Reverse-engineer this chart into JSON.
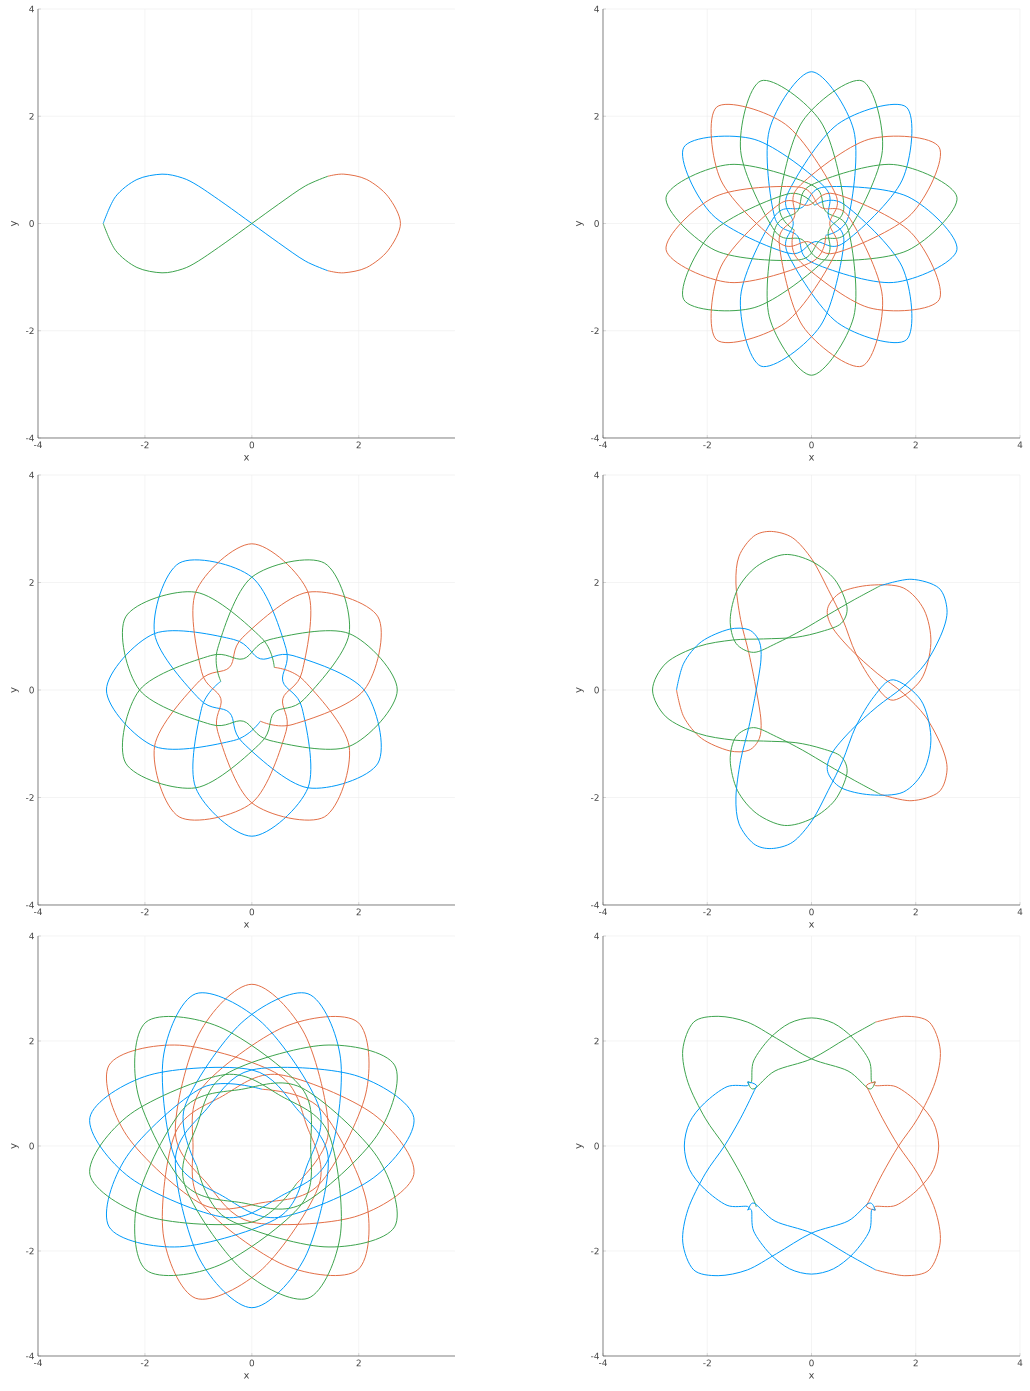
{
  "chart_data": [
    {
      "type": "line",
      "xlabel": "x",
      "ylabel": "y",
      "xlim": [
        -4,
        3.8
      ],
      "ylim": [
        -4,
        4
      ],
      "xticks": [
        -4,
        -2,
        0,
        2
      ],
      "yticks": [
        -4,
        -2,
        0,
        2,
        4
      ],
      "grid": true,
      "series": [
        {
          "color": "#009afa",
          "x": [
            1.42,
            1.0,
            0.5,
            0,
            -0.5,
            -1.0,
            -1.3,
            -1.68,
            -2.15,
            -2.55,
            -2.78
          ],
          "values": [
            -0.88,
            -0.7,
            -0.36,
            0,
            0.36,
            0.7,
            0.85,
            0.92,
            0.82,
            0.5,
            0
          ]
        },
        {
          "color": "#e36f47",
          "x": [
            1.42,
            1.72,
            2.15,
            2.55,
            2.78,
            2.55,
            2.15,
            1.72,
            1.42
          ],
          "values": [
            0.88,
            0.92,
            0.82,
            0.5,
            0,
            -0.5,
            -0.82,
            -0.92,
            -0.88
          ]
        },
        {
          "color": "#3ea44e",
          "x": [
            -2.78,
            -2.55,
            -2.15,
            -1.68,
            -1.3,
            -1.0,
            -0.5,
            0,
            0.5,
            1.0,
            1.42
          ],
          "values": [
            0,
            -0.5,
            -0.82,
            -0.92,
            -0.85,
            -0.7,
            -0.36,
            0,
            0.36,
            0.7,
            0.88
          ]
        }
      ]
    },
    {
      "type": "line",
      "xlabel": "x",
      "ylabel": "y",
      "xlim": [
        -4,
        4
      ],
      "ylim": [
        -4,
        4
      ],
      "xticks": [
        -4,
        -2,
        0,
        2,
        4
      ],
      "yticks": [
        -4,
        -2,
        0,
        2,
        4
      ],
      "grid": true,
      "series": [
        {
          "color": "#009afa",
          "x": [
            0.27,
            0.71,
            0.81,
            0,
            -0.81,
            -0.71,
            -0.27,
            0,
            1.57,
            2.79,
            1.85,
            0.25,
            -0.18,
            -0.71,
            -1.36,
            -0.97,
            0.17,
            0.62,
            0.33,
            0.25,
            -1.1,
            -2.45,
            -1.91,
            -0.46,
            0.06,
            0.62,
            1.74,
            1.82,
            0.5,
            -0.46,
            -0.35,
            -0.46,
            0.5,
            1.82,
            1.74,
            0.62,
            0.06
          ],
          "values": [
            -0.22,
            0.13,
            1.74,
            2.83,
            1.74,
            0.13,
            -0.23,
            -0.72,
            -1.1,
            -0.49,
            0.5,
            0.68,
            0.3,
            0.13,
            -1.36,
            -2.66,
            -1.91,
            -0.36,
            0.12,
            0.68,
            1.57,
            1.42,
            0.17,
            -0.55,
            -0.34,
            -0.36,
            0.81,
            2.17,
            1.85,
            0.55,
            0,
            -0.55,
            -1.85,
            -2.17,
            -0.81,
            0.36,
            0.34
          ]
        },
        {
          "color": "#3ea44e",
          "x": [
            0.06,
            -0.46,
            -1.91,
            -2.45,
            -1.1,
            0.25,
            0.33,
            0.62,
            0.17,
            -0.97,
            -1.36,
            -0.71,
            -0.18,
            0.25,
            1.85,
            2.79,
            1.57,
            0,
            -0.27,
            -0.71,
            -0.81,
            0,
            0.81,
            0.71,
            0.27,
            0,
            -1.57,
            -2.79,
            -1.85,
            -0.25,
            0.18,
            0.71,
            1.36,
            0.97,
            -0.17,
            -0.62,
            -0.33
          ],
          "values": [
            0.34,
            0.55,
            -0.17,
            -1.42,
            -1.57,
            -0.68,
            -0.12,
            0.36,
            1.91,
            2.66,
            1.36,
            -0.13,
            -0.3,
            -0.68,
            -0.5,
            0.49,
            1.1,
            0.72,
            0.23,
            -0.13,
            -1.74,
            -2.83,
            -1.74,
            -0.13,
            0.23,
            0.72,
            1.1,
            0.49,
            -0.5,
            -0.68,
            -0.3,
            -0.13,
            1.36,
            2.66,
            1.91,
            0.36,
            -0.12
          ]
        },
        {
          "color": "#e36f47",
          "x": [
            -0.33,
            -0.25,
            1.1,
            2.45,
            1.91,
            0.46,
            -0.06,
            -0.62,
            -1.74,
            -1.82,
            -0.5,
            0.46,
            0.35,
            0.46,
            -0.5,
            -1.82,
            -1.74,
            -0.62,
            -0.06,
            0.46,
            1.91,
            2.45,
            1.1,
            -0.25,
            -0.33,
            -0.62,
            -0.17,
            0.97,
            1.36,
            0.71,
            0.18,
            -0.25,
            -1.85,
            -2.79,
            -1.57,
            0,
            0.27
          ],
          "values": [
            -0.12,
            -0.68,
            -1.57,
            -1.42,
            -0.17,
            0.55,
            0.34,
            0.36,
            -0.81,
            -2.17,
            -1.85,
            -0.55,
            0,
            0.55,
            1.85,
            2.17,
            0.81,
            -0.36,
            -0.34,
            -0.55,
            0.17,
            1.42,
            1.57,
            0.68,
            0.12,
            -0.36,
            -1.91,
            -2.66,
            -1.36,
            0.13,
            0.3,
            0.68,
            0.5,
            -0.49,
            -1.1,
            -0.72,
            -0.23
          ]
        }
      ]
    },
    {
      "type": "line",
      "xlabel": "x",
      "ylabel": "y",
      "xlim": [
        -4,
        3.8
      ],
      "ylim": [
        -4,
        4
      ],
      "xticks": [
        -4,
        -2,
        0,
        2
      ],
      "yticks": [
        -4,
        -2,
        0,
        2,
        4
      ],
      "grid": true,
      "series": [
        {
          "color": "#009afa",
          "x": [
            -0.58,
            -0.94,
            -1.05,
            0,
            1.05,
            0.94,
            0.58,
            0.64,
            0,
            -1.36,
            -1.82,
            -0.98,
            -0.42,
            -0.17,
            1.05,
            2.36,
            2.1,
            0.77,
            0.16,
            -0.34,
            -1.82,
            -2.72,
            -1.82,
            -0.34,
            0.16
          ],
          "values": [
            0.16,
            -0.34,
            -1.82,
            -2.72,
            -1.82,
            -0.34,
            0.16,
            0.77,
            2.1,
            2.36,
            1.05,
            -0.17,
            -0.42,
            -0.98,
            -1.82,
            -1.36,
            0,
            0.64,
            0.58,
            0.94,
            1.05,
            0,
            -1.05,
            -0.94,
            -0.58
          ]
        },
        {
          "color": "#e36f47",
          "x": [
            0.16,
            0.77,
            2.1,
            2.36,
            1.05,
            -0.17,
            -0.42,
            -0.98,
            -1.82,
            -1.36,
            0,
            0.64,
            0.58,
            0.94,
            1.05,
            0,
            -1.05,
            -0.94,
            -0.58,
            -0.64,
            0,
            1.36,
            1.82,
            0.98,
            0.42
          ],
          "values": [
            -0.58,
            -0.64,
            0,
            1.36,
            1.82,
            0.98,
            0.42,
            0.17,
            -1.05,
            -2.36,
            -2.1,
            -0.77,
            -0.16,
            0.34,
            1.82,
            2.72,
            1.82,
            0.34,
            -0.16,
            -0.77,
            -2.1,
            -2.36,
            -1.05,
            0.17,
            0.42
          ]
        },
        {
          "color": "#3ea44e",
          "x": [
            0.42,
            0.17,
            -1.05,
            -2.36,
            -2.1,
            -0.77,
            -0.16,
            0.34,
            1.82,
            2.72,
            1.82,
            0.34,
            -0.16,
            -0.77,
            -2.1,
            -2.36,
            -1.05,
            0.17,
            0.42,
            0.98,
            1.82,
            1.36,
            0,
            -0.64,
            -0.58
          ],
          "values": [
            0.42,
            0.98,
            1.82,
            1.36,
            0,
            -0.64,
            -0.58,
            -0.94,
            -1.05,
            0,
            1.05,
            0.94,
            0.58,
            0.64,
            0,
            -1.36,
            -1.82,
            -0.98,
            -0.42,
            -0.17,
            1.05,
            2.36,
            2.1,
            0.77,
            0.16
          ]
        }
      ]
    },
    {
      "type": "line",
      "xlabel": "x",
      "ylabel": "y",
      "xlim": [
        -4,
        4
      ],
      "ylim": [
        -4,
        4
      ],
      "xticks": [
        -4,
        -2,
        0,
        2,
        4
      ],
      "yticks": [
        -4,
        -2,
        0,
        2,
        4
      ],
      "grid": true,
      "series": [
        {
          "color": "#e36f47",
          "x": [
            -2.59,
            -2.45,
            -2.11,
            -1.58,
            -1.2,
            -1.0,
            -0.97,
            -1.06,
            -1.2,
            -1.36,
            -1.45,
            -1.39,
            -1.11,
            -0.77,
            -0.36,
            0.01,
            0.32,
            0.6,
            0.85,
            1.2,
            1.57,
            2.1,
            2.29,
            2.16,
            1.76,
            1.13,
            0.57,
            0.31,
            0.39,
            0.76,
            1.26,
            1.76,
            2.19,
            2.5,
            2.6,
            2.44,
            1.91,
            1.32
          ],
          "values": [
            0,
            -0.5,
            -0.9,
            -1.13,
            -1.12,
            -0.9,
            -0.56,
            0,
            0.68,
            1.31,
            1.99,
            2.49,
            2.86,
            2.95,
            2.83,
            2.43,
            1.87,
            1.31,
            0.68,
            0.12,
            -0.19,
            0.19,
            0.87,
            1.49,
            1.9,
            1.95,
            1.82,
            1.52,
            1.18,
            0.75,
            0.31,
            -0.06,
            -0.5,
            -1.06,
            -1.49,
            -1.9,
            -2.06,
            -1.94
          ]
        },
        {
          "color": "#3ea44e",
          "x": [
            1.32,
            0.82,
            0.32,
            -0.17,
            -0.67,
            -1.11,
            -1.45,
            -1.56,
            -1.42,
            -1.05,
            -0.52,
            0.01,
            0.45,
            0.68,
            0.57,
            0.2,
            -0.3,
            -0.92,
            -1.51,
            -2.17,
            -2.79,
            -3.05,
            -2.79,
            -2.17,
            -1.51,
            -0.92,
            -0.3,
            0.2,
            0.57,
            0.68,
            0.45,
            0.01,
            -0.52,
            -1.05,
            -1.42,
            -1.56,
            -1.45,
            -1.11,
            -0.67,
            -0.17,
            0.32,
            0.82,
            1.32
          ],
          "values": [
            -1.94,
            -1.68,
            -1.4,
            -1.12,
            -0.87,
            -0.7,
            -0.87,
            -1.31,
            -1.87,
            -2.3,
            -2.52,
            -2.39,
            -2.05,
            -1.55,
            -1.24,
            -1.09,
            -0.98,
            -0.95,
            -0.93,
            -0.81,
            -0.5,
            0,
            0.5,
            0.81,
            0.93,
            0.95,
            0.98,
            1.09,
            1.24,
            1.55,
            2.05,
            2.39,
            2.52,
            2.3,
            1.87,
            1.31,
            0.87,
            0.7,
            0.87,
            1.12,
            1.4,
            1.68,
            1.94
          ]
        },
        {
          "color": "#009afa",
          "x": [
            1.32,
            1.91,
            2.44,
            2.6,
            2.5,
            2.19,
            1.76,
            1.26,
            0.76,
            0.39,
            0.31,
            0.57,
            1.13,
            1.76,
            2.16,
            2.29,
            2.1,
            1.57,
            1.2,
            0.85,
            0.6,
            0.32,
            0.01,
            -0.36,
            -0.77,
            -1.11,
            -1.39,
            -1.45,
            -1.36,
            -1.2,
            -1.06,
            -0.97,
            -1.0,
            -1.2,
            -1.58,
            -2.11,
            -2.45,
            -2.59
          ],
          "values": [
            1.94,
            2.06,
            1.9,
            1.49,
            1.06,
            0.5,
            0.06,
            -0.31,
            -0.75,
            -1.18,
            -1.52,
            -1.82,
            -1.95,
            -1.9,
            -1.49,
            -0.87,
            -0.19,
            0.19,
            -0.12,
            -0.68,
            -1.31,
            -1.87,
            -2.43,
            -2.83,
            -2.95,
            -2.86,
            -2.49,
            -1.99,
            -1.31,
            -0.68,
            0,
            0.56,
            0.9,
            1.12,
            1.13,
            0.9,
            0.5,
            0
          ]
        }
      ]
    },
    {
      "type": "line",
      "xlabel": "x",
      "ylabel": "y",
      "xlim": [
        -4,
        3.8
      ],
      "ylim": [
        -4,
        4
      ],
      "xticks": [
        -4,
        -2,
        0,
        2
      ],
      "yticks": [
        -4,
        -2,
        0,
        2,
        4
      ],
      "grid": true,
      "series": [
        {
          "color": "#e36f47",
          "x": [
            0.84,
            1.43,
            0.99,
            0,
            -0.99,
            -1.43,
            -0.84,
            0,
            1.92,
            3.03,
            2.27,
            0.5,
            -0.55,
            -1.43,
            -1.66,
            -1.05,
            0.2,
            1.26,
            1.03,
            0.5,
            -1.35,
            -2.67,
            -2.34,
            -0.93,
            0.19,
            1.26,
            2.13,
            1.98,
            0.61,
            -0.93,
            -1.1,
            -0.93,
            0.61,
            1.98,
            2.13,
            1.26,
            0.19
          ],
          "values": [
            -0.71,
            0.25,
            2.13,
            3.08,
            2.13,
            0.25,
            -0.71,
            -1.45,
            -1.35,
            -0.54,
            0.61,
            1.36,
            0.95,
            0.25,
            -1.66,
            -2.9,
            -2.34,
            -0.73,
            0.38,
            1.36,
            1.92,
            1.54,
            0.2,
            -1.11,
            -1.08,
            -0.73,
            0.99,
            2.36,
            2.27,
            1.11,
            0,
            -1.11,
            -2.27,
            -2.36,
            -0.99,
            0.73,
            1.08
          ]
        },
        {
          "color": "#009afa",
          "x": [
            0.19,
            -0.93,
            -2.34,
            -2.67,
            -1.35,
            0.5,
            1.03,
            1.26,
            0.2,
            -1.05,
            -1.66,
            -1.43,
            -0.55,
            0.5,
            2.27,
            3.03,
            1.92,
            0,
            -0.84,
            -1.43,
            -0.99,
            0,
            0.99,
            1.43,
            0.84,
            0,
            -1.92,
            -3.03,
            -2.27,
            -0.5,
            0.55,
            1.43,
            1.66,
            1.05,
            -0.2,
            -1.26,
            -1.03
          ],
          "values": [
            1.08,
            1.11,
            -0.2,
            -1.54,
            -1.92,
            -1.36,
            -0.38,
            0.73,
            2.34,
            2.9,
            1.66,
            -0.25,
            -0.95,
            -1.36,
            -0.61,
            0.54,
            1.35,
            1.45,
            0.71,
            -0.25,
            -2.13,
            -3.08,
            -2.13,
            -0.25,
            0.71,
            1.45,
            1.35,
            0.54,
            -0.61,
            -1.36,
            -0.95,
            -0.25,
            1.66,
            2.9,
            2.34,
            0.73,
            -0.38
          ]
        },
        {
          "color": "#3ea44e",
          "x": [
            -1.03,
            -0.5,
            1.35,
            2.67,
            2.34,
            0.93,
            -0.19,
            -1.26,
            -2.13,
            -1.98,
            -0.61,
            0.93,
            1.1,
            0.93,
            -0.61,
            -1.98,
            -2.13,
            -1.26,
            -0.19,
            0.93,
            2.34,
            2.67,
            1.35,
            -0.5,
            -1.03,
            -1.26,
            -0.2,
            1.05,
            1.66,
            1.43,
            0.55,
            -0.5,
            -2.27,
            -3.03,
            -1.92,
            0,
            0.84
          ],
          "values": [
            -0.38,
            -1.36,
            -1.92,
            -1.54,
            -0.2,
            1.11,
            1.08,
            0.73,
            -0.99,
            -2.36,
            -2.27,
            -1.11,
            0,
            1.11,
            2.27,
            2.36,
            0.99,
            -0.73,
            -1.08,
            -1.11,
            0.2,
            1.54,
            1.92,
            1.36,
            0.38,
            -0.73,
            -2.34,
            -2.9,
            -1.66,
            0.25,
            0.95,
            1.36,
            0.61,
            -0.54,
            -1.35,
            -1.45,
            -0.71
          ]
        }
      ]
    },
    {
      "type": "line",
      "xlabel": "x",
      "ylabel": "y",
      "xlim": [
        -4,
        4
      ],
      "ylim": [
        -4,
        4
      ],
      "xticks": [
        -4,
        -2,
        0,
        2,
        4
      ],
      "yticks": [
        -4,
        -2,
        0,
        2,
        4
      ],
      "grid": true,
      "series": [
        {
          "color": "#3ea44e",
          "x": [
            -1.06,
            -1.11,
            -1.36,
            -1.67,
            -2.04,
            -2.37,
            -2.47,
            -2.26,
            -1.79,
            -1.23,
            -0.67,
            0,
            0.7,
            1.1,
            1.22,
            1.15,
            1.11,
            0.8,
            0.42,
            0,
            -0.42,
            -0.8,
            -1.11,
            -1.15,
            -1.22,
            -1.1,
            -0.7,
            0,
            0.67,
            1.23
          ],
          "values": [
            -1.16,
            -1.03,
            -0.53,
            0,
            0.53,
            1.21,
            1.83,
            2.36,
            2.47,
            2.36,
            2.05,
            1.66,
            1.43,
            1.09,
            1.22,
            1.23,
            1.62,
            2.05,
            2.34,
            2.44,
            2.34,
            2.05,
            1.62,
            1.23,
            1.22,
            1.09,
            1.43,
            1.66,
            2.05,
            2.36
          ]
        },
        {
          "color": "#e36f47",
          "x": [
            1.23,
            1.79,
            2.26,
            2.47,
            2.37,
            2.04,
            1.67,
            1.36,
            1.11,
            1.06,
            1.22,
            1.23,
            1.62,
            2.05,
            2.34,
            2.44,
            2.34,
            2.05,
            1.62,
            1.23,
            1.22,
            1.06,
            1.11,
            1.36,
            1.67,
            2.04,
            2.37,
            2.47,
            2.26,
            1.79,
            1.23
          ],
          "values": [
            2.36,
            2.47,
            2.36,
            1.83,
            1.21,
            0.53,
            0,
            -0.53,
            -1.03,
            -1.16,
            -1.22,
            -1.15,
            -1.13,
            -0.82,
            -0.45,
            0,
            0.45,
            0.82,
            1.13,
            1.15,
            1.22,
            1.16,
            1.03,
            0.53,
            0,
            -0.53,
            -1.21,
            -1.83,
            -2.36,
            -2.47,
            -2.36
          ]
        },
        {
          "color": "#009afa",
          "x": [
            1.23,
            0.67,
            0,
            -0.7,
            -1.1,
            -1.22,
            -1.23,
            -1.62,
            -2.05,
            -2.34,
            -2.44,
            -2.34,
            -2.05,
            -1.62,
            -1.23,
            -1.22,
            -1.06,
            -1.11,
            -1.36,
            -1.67,
            -2.04,
            -2.37,
            -2.47,
            -2.26,
            -1.79,
            -1.23,
            -0.67,
            0,
            0.7,
            1.1,
            1.22,
            1.15,
            1.11,
            0.8,
            0.42,
            0,
            -0.42,
            -0.8,
            -1.11,
            -1.15,
            -1.22
          ],
          "values": [
            -2.36,
            -2.05,
            -1.66,
            -1.43,
            -1.09,
            -1.22,
            -1.15,
            -1.13,
            -0.82,
            -0.45,
            0,
            0.45,
            0.82,
            1.13,
            1.15,
            1.22,
            1.16,
            1.03,
            0.53,
            0,
            -0.53,
            -1.21,
            -1.83,
            -2.36,
            -2.47,
            -2.36,
            -2.05,
            -1.66,
            -1.43,
            -1.09,
            -1.22,
            -1.23,
            -1.62,
            -2.05,
            -2.34,
            -2.44,
            -2.34,
            -2.05,
            -1.62,
            -1.23,
            -1.22
          ]
        }
      ]
    }
  ]
}
